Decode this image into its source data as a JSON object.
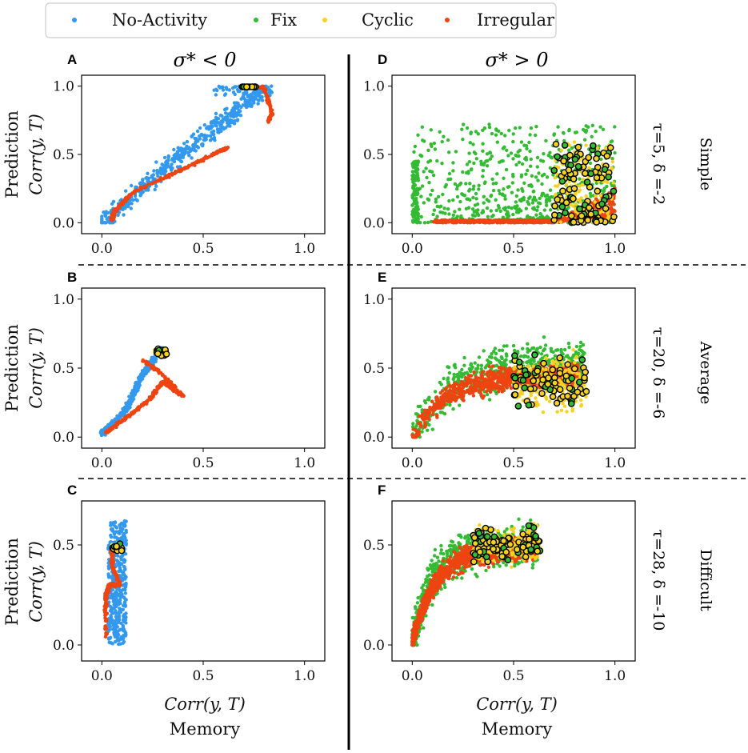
{
  "legend": [
    {
      "label": "No-Activity",
      "color": "#3399ee"
    },
    {
      "label": "Fix",
      "color": "#33bb33"
    },
    {
      "label": "Cyclic",
      "color": "#f5d21e"
    },
    {
      "label": "Irregular",
      "color": "#ee4411"
    }
  ],
  "column_titles": {
    "left": "σ* < 0",
    "right": "σ* > 0"
  },
  "row_labels": [
    {
      "params": "τ=5, δ =-2",
      "difficulty": "Simple"
    },
    {
      "params": "τ=20, δ =-6",
      "difficulty": "Average"
    },
    {
      "params": "τ=28, δ =-10",
      "difficulty": "Difficult"
    }
  ],
  "ylabel_line1": "Prediction",
  "ylabel_line2": "Corr(y, T)",
  "xlabel_line1": "Corr(y, T)",
  "xlabel_line2": "Memory",
  "x_ticks": [
    "0.0",
    "0.5",
    "1.0"
  ],
  "y_ticks": [
    "0.0",
    "0.5",
    "1.0"
  ],
  "chart_data": [
    {
      "type": "scatter",
      "panel": "A",
      "xlim": [
        -0.1,
        1.1
      ],
      "ylim": [
        -0.08,
        1.08
      ],
      "yticks": [
        0,
        0.5,
        1.0
      ],
      "series": [
        {
          "name": "No-Activity",
          "description": "broad diagonal band",
          "x_range": [
            0.0,
            0.85
          ],
          "y_range": [
            0.0,
            1.0
          ]
        },
        {
          "name": "Irregular",
          "description": "segmented diagonal band reaching (0.72,1.0) and hooking down to (0.82,0.8)",
          "x_range": [
            0.05,
            0.85
          ],
          "y_range": [
            0.0,
            1.0
          ]
        },
        {
          "name": "Cyclic",
          "description": "small cluster near top",
          "x": [
            0.72,
            0.74,
            0.7,
            0.75
          ],
          "y": [
            1.0,
            1.0,
            1.0,
            1.0
          ]
        }
      ]
    },
    {
      "type": "scatter",
      "panel": "D",
      "xlim": [
        -0.1,
        1.1
      ],
      "ylim": [
        -0.08,
        1.08
      ],
      "yticks": [
        0,
        0.5,
        1.0
      ],
      "series": [
        {
          "name": "Fix",
          "description": "scattered 0-0.75",
          "x_range": [
            0.0,
            1.0
          ],
          "y_range": [
            0.0,
            0.75
          ]
        },
        {
          "name": "Irregular",
          "description": "flat band near 0 rising toward high memory",
          "x_range": [
            0.1,
            1.0
          ],
          "y_range": [
            0.0,
            0.3
          ]
        },
        {
          "name": "Cyclic",
          "description": "cluster at high memory",
          "x_range": [
            0.7,
            1.0
          ],
          "y_range": [
            0.0,
            0.6
          ]
        }
      ]
    },
    {
      "type": "scatter",
      "panel": "B",
      "xlim": [
        -0.1,
        1.1
      ],
      "ylim": [
        -0.08,
        1.08
      ],
      "yticks": [
        0,
        0.5,
        1.0
      ],
      "series": [
        {
          "name": "No-Activity",
          "description": "diagonal band",
          "x_range": [
            0.0,
            0.35
          ],
          "y_range": [
            0.0,
            0.67
          ]
        },
        {
          "name": "Irregular",
          "description": "zigzag band",
          "x_range": [
            0.0,
            0.4
          ],
          "y_range": [
            0.0,
            0.58
          ]
        },
        {
          "name": "Cyclic",
          "description": "cluster",
          "x": [
            0.28,
            0.3,
            0.29,
            0.27
          ],
          "y": [
            0.62,
            0.63,
            0.6,
            0.61
          ]
        }
      ]
    },
    {
      "type": "scatter",
      "panel": "E",
      "xlim": [
        -0.1,
        1.1
      ],
      "ylim": [
        -0.08,
        1.08
      ],
      "yticks": [
        0,
        0.5,
        1.0
      ],
      "series": [
        {
          "name": "Fix",
          "description": "broad cloud",
          "x_range": [
            0.0,
            0.85
          ],
          "y_range": [
            0.0,
            0.8
          ]
        },
        {
          "name": "Irregular",
          "description": "saturating curve cloud",
          "x_range": [
            0.0,
            0.85
          ],
          "y_range": [
            0.0,
            0.8
          ]
        },
        {
          "name": "Cyclic",
          "description": "cloud at higher memory",
          "x_range": [
            0.5,
            0.85
          ],
          "y_range": [
            0.1,
            0.7
          ]
        }
      ]
    },
    {
      "type": "scatter",
      "panel": "C",
      "xlim": [
        -0.1,
        1.1
      ],
      "ylim": [
        -0.08,
        0.72
      ],
      "yticks": [
        0,
        0.5
      ],
      "series": [
        {
          "name": "No-Activity",
          "description": "narrow vertical band",
          "x_range": [
            0.0,
            0.12
          ],
          "y_range": [
            0.0,
            0.62
          ]
        },
        {
          "name": "Irregular",
          "description": "vertical zigzag",
          "x_range": [
            0.0,
            0.1
          ],
          "y_range": [
            0.0,
            0.5
          ]
        },
        {
          "name": "Cyclic",
          "description": "cluster",
          "x": [
            0.07,
            0.08,
            0.06,
            0.09
          ],
          "y": [
            0.49,
            0.5,
            0.48,
            0.49
          ]
        }
      ]
    },
    {
      "type": "scatter",
      "panel": "F",
      "xlim": [
        -0.1,
        1.1
      ],
      "ylim": [
        -0.08,
        0.72
      ],
      "yticks": [
        0,
        0.5
      ],
      "series": [
        {
          "name": "Fix",
          "description": "cloud",
          "x_range": [
            0.0,
            0.65
          ],
          "y_range": [
            0.0,
            0.65
          ]
        },
        {
          "name": "Irregular",
          "description": "saturating curve",
          "x_range": [
            0.0,
            0.65
          ],
          "y_range": [
            0.0,
            0.65
          ]
        },
        {
          "name": "Cyclic",
          "description": "cloud at higher memory",
          "x_range": [
            0.3,
            0.65
          ],
          "y_range": [
            0.3,
            0.7
          ]
        }
      ]
    }
  ]
}
